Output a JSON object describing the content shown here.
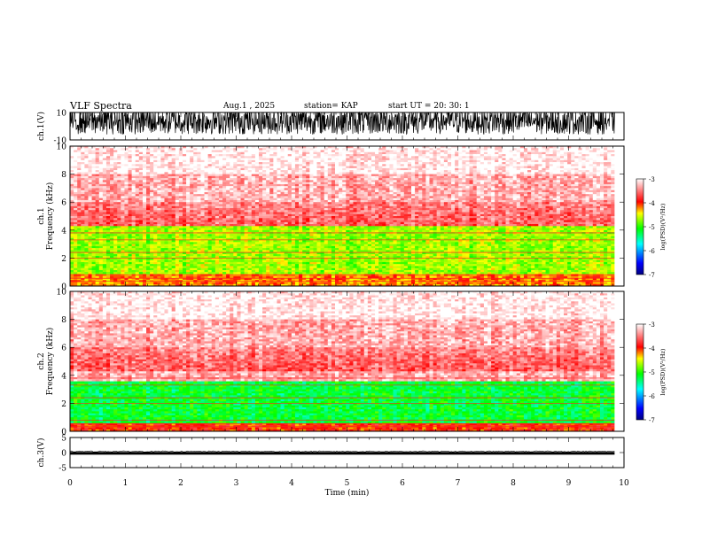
{
  "header": {
    "title": "VLF Spectra",
    "date": "Aug.1  , 2025",
    "station": "station= KAP",
    "start": "start  UT  =   20: 30: 1"
  },
  "chart_data": [
    {
      "type": "line",
      "name": "ch1-waveform",
      "ylabel": "ch.1(V)",
      "ylim": [
        -10,
        10
      ],
      "yticks": [
        "10",
        "-10"
      ],
      "xlim": [
        0,
        10
      ],
      "description_values": {
        "mean": 0,
        "amplitude_range": [
          -10,
          10
        ]
      }
    },
    {
      "type": "heatmap",
      "name": "ch1-spectrogram",
      "ylabel": "ch.1\nFrequency (kHz)",
      "ylim": [
        0,
        10
      ],
      "yticks": [
        "10",
        "8",
        "6",
        "4",
        "2",
        "0"
      ],
      "xlim": [
        0,
        10
      ],
      "bands_khz": [
        {
          "from": 0,
          "to": 0.8,
          "level": -4.2
        },
        {
          "from": 0.8,
          "to": 4.3,
          "level": -4.7
        },
        {
          "from": 4.3,
          "to": 10,
          "level": -3.3
        }
      ],
      "colorbar": {
        "label": "log(PSD)(V²/Hz)",
        "ticks": [
          "-3",
          "-4",
          "-5",
          "-6",
          "-7"
        ],
        "range": [
          -7,
          -3
        ]
      }
    },
    {
      "type": "heatmap",
      "name": "ch2-spectrogram",
      "ylabel": "ch.2\nFrequency (kHz)",
      "ylim": [
        0,
        10
      ],
      "yticks": [
        "10",
        "8",
        "6",
        "4",
        "2",
        "0"
      ],
      "xlim": [
        0,
        10
      ],
      "bands_khz": [
        {
          "from": 0,
          "to": 0.6,
          "level": -4.0
        },
        {
          "from": 0.6,
          "to": 3.6,
          "level": -5.2
        },
        {
          "from": 3.6,
          "to": 10,
          "level": -3.3
        }
      ],
      "colorbar": {
        "label": "log(PSD)(V²/Hz)",
        "ticks": [
          "-3",
          "-4",
          "-5",
          "-6",
          "-7"
        ],
        "range": [
          -7,
          -3
        ]
      }
    },
    {
      "type": "line",
      "name": "ch3-waveform",
      "ylabel": "ch.3(V)",
      "ylim": [
        -5,
        5
      ],
      "yticks": [
        "5",
        "0",
        "-5"
      ],
      "xlim": [
        0,
        10
      ],
      "description_values": {
        "mean": -0.3,
        "amplitude_range": [
          -0.7,
          0.2
        ]
      }
    }
  ],
  "xaxis": {
    "label": "Time  (min)",
    "ticks": [
      "0",
      "1",
      "2",
      "3",
      "4",
      "5",
      "6",
      "7",
      "8",
      "9",
      "10"
    ],
    "data_end": 9.83
  }
}
